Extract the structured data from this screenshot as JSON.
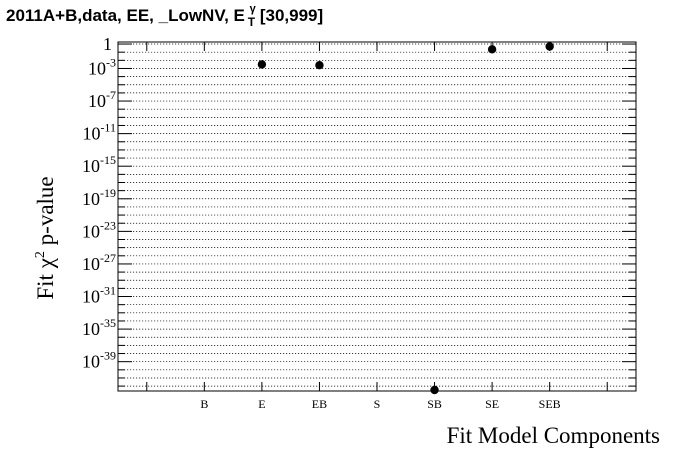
{
  "title": {
    "prefix": "2011A+B,data, EE, _LowNV, E",
    "sup": "γ",
    "sub": "T",
    "range": "[30,999]"
  },
  "chart_data": {
    "type": "scatter",
    "categories": [
      "B",
      "E",
      "EB",
      "S",
      "SB",
      "SE",
      "SEB"
    ],
    "xlabel": "Fit Model Components",
    "ylabel_main": "Fit χ",
    "ylabel_sup": "2",
    "ylabel_tail": " p-value",
    "y_scale": "log",
    "ylim_exp": [
      -43,
      0
    ],
    "ytick_exps": [
      0,
      -3,
      -7,
      -11,
      -15,
      -19,
      -23,
      -27,
      -31,
      -35,
      -39
    ],
    "ytick_labels": [
      "1",
      "10",
      "10",
      "10",
      "10",
      "10",
      "10",
      "10",
      "10",
      "10",
      "10"
    ],
    "ytick_sups": [
      "",
      "-3",
      "-7",
      "-11",
      "-15",
      "-19",
      "-23",
      "-27",
      "-31",
      "-35",
      "-39"
    ],
    "points": [
      {
        "category": "E",
        "log10_p": -2.5
      },
      {
        "category": "EB",
        "log10_p": -2.6
      },
      {
        "category": "SB",
        "log10_p": -43
      },
      {
        "category": "SE",
        "log10_p": -0.65
      },
      {
        "category": "SEB",
        "log10_p": -0.3
      }
    ],
    "grid": true,
    "marker_color": "#000000"
  }
}
